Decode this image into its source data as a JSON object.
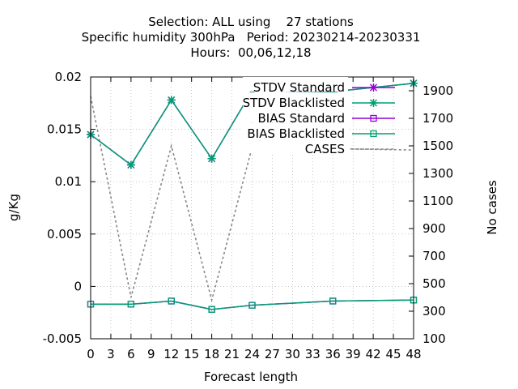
{
  "chart_data": {
    "type": "line",
    "title_lines": [
      "Selection: ALL using    27 stations",
      "Specific humidity 300hPa   Period: 20230214-20230331",
      "Hours:  00,06,12,18"
    ],
    "xlabel": "Forecast length",
    "ylabel": "g/Kg",
    "y2label": "No cases",
    "xlim": [
      0,
      48
    ],
    "ylim": [
      -0.005,
      0.02
    ],
    "y2lim": [
      100,
      2000
    ],
    "x_ticks": [
      "0",
      "3",
      "6",
      "9",
      "12",
      "15",
      "18",
      "21",
      "24",
      "27",
      "30",
      "33",
      "36",
      "39",
      "42",
      "45",
      "48"
    ],
    "y_ticks": [
      "-0.005",
      "0",
      "0.005",
      "0.01",
      "0.015",
      "0.02"
    ],
    "y2_ticks": [
      "100",
      "300",
      "500",
      "700",
      "900",
      "1100",
      "1300",
      "1500",
      "1700",
      "1900"
    ],
    "grid": true,
    "legend_position": "top-right",
    "series": [
      {
        "name": "STDV Standard",
        "axis": "y",
        "color": "#9400d3",
        "marker": "star",
        "x": [
          0,
          6,
          12,
          18,
          24,
          36,
          48
        ],
        "y": [
          0.0145,
          0.0116,
          0.0178,
          0.0122,
          0.0187,
          0.0186,
          0.0194
        ]
      },
      {
        "name": "STDV Blacklisted",
        "axis": "y",
        "color": "#009e73",
        "marker": "star",
        "x": [
          0,
          6,
          12,
          18,
          24,
          36,
          48
        ],
        "y": [
          0.0145,
          0.0116,
          0.0178,
          0.0122,
          0.0187,
          0.0186,
          0.0194
        ]
      },
      {
        "name": "BIAS Standard",
        "axis": "y",
        "color": "#9400d3",
        "marker": "square",
        "x": [
          0,
          6,
          12,
          18,
          24,
          36,
          48
        ],
        "y": [
          -0.0017,
          -0.0017,
          -0.0014,
          -0.0022,
          -0.0018,
          -0.0014,
          -0.0013
        ]
      },
      {
        "name": "BIAS Blacklisted",
        "axis": "y",
        "color": "#009e73",
        "marker": "square",
        "x": [
          0,
          6,
          12,
          18,
          24,
          36,
          48
        ],
        "y": [
          -0.0017,
          -0.0017,
          -0.0014,
          -0.0022,
          -0.0018,
          -0.0014,
          -0.0013
        ]
      },
      {
        "name": "CASES",
        "axis": "y2",
        "color": "#888888",
        "marker": "none",
        "dashed": true,
        "x": [
          0,
          6,
          12,
          18,
          24,
          36,
          48
        ],
        "y": [
          1860,
          400,
          1500,
          380,
          1490,
          1480,
          1470
        ]
      }
    ]
  }
}
